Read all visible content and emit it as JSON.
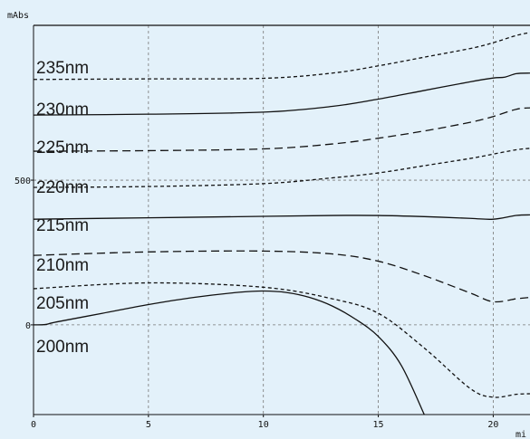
{
  "chart_data": {
    "type": "line",
    "ylabel": "mAbs",
    "xlabel": "mi",
    "xlim": [
      0,
      21.6
    ],
    "ylim": [
      -310,
      1035
    ],
    "x_ticks": [
      0,
      5,
      10,
      15,
      20
    ],
    "y_ticks": [
      0,
      500
    ],
    "grid": true,
    "background": "#e3f1fa",
    "series": [
      {
        "name": "235nm",
        "style": "short-dash",
        "x": [
          0,
          5,
          10,
          13,
          15,
          17,
          19,
          20,
          21,
          21.6
        ],
        "y": [
          848,
          850,
          852,
          870,
          895,
          925,
          955,
          975,
          1000,
          1010
        ]
      },
      {
        "name": "230nm",
        "style": "solid",
        "x": [
          0,
          5,
          10,
          13,
          15,
          17,
          19,
          20,
          20.5,
          21,
          21.6
        ],
        "y": [
          725,
          728,
          735,
          755,
          780,
          810,
          840,
          853,
          856,
          868,
          870
        ]
      },
      {
        "name": "225nm",
        "style": "long-dash",
        "x": [
          0,
          5,
          10,
          13,
          15,
          17,
          19,
          20,
          21,
          21.6
        ],
        "y": [
          600,
          602,
          608,
          625,
          645,
          670,
          700,
          720,
          745,
          750
        ]
      },
      {
        "name": "220nm",
        "style": "short-dash",
        "x": [
          0,
          5,
          10,
          13,
          15,
          17,
          19,
          20,
          21,
          21.6
        ],
        "y": [
          475,
          478,
          488,
          508,
          525,
          550,
          575,
          590,
          605,
          610
        ]
      },
      {
        "name": "215nm",
        "style": "solid",
        "x": [
          0,
          5,
          10,
          13,
          15,
          17,
          19,
          20,
          21,
          21.6
        ],
        "y": [
          365,
          370,
          375,
          378,
          378,
          374,
          368,
          365,
          378,
          380
        ]
      },
      {
        "name": "210nm",
        "style": "long-dash",
        "x": [
          0,
          5,
          10,
          13,
          15,
          17,
          19,
          20,
          21,
          21.6
        ],
        "y": [
          240,
          252,
          255,
          245,
          220,
          170,
          110,
          80,
          90,
          95
        ]
      },
      {
        "name": "205nm",
        "style": "short-dash",
        "x": [
          0,
          5,
          10,
          13,
          15,
          17,
          19,
          20,
          21,
          21.6
        ],
        "y": [
          125,
          145,
          130,
          90,
          40,
          -80,
          -220,
          -250,
          -240,
          -238
        ]
      },
      {
        "name": "200nm",
        "style": "solid",
        "x": [
          0,
          0.5,
          1,
          3,
          5,
          7,
          9,
          10,
          11,
          12,
          13,
          14,
          15,
          16,
          17
        ],
        "y": [
          0,
          1,
          10,
          40,
          70,
          95,
          113,
          117,
          112,
          95,
          65,
          20,
          -40,
          -140,
          -310
        ]
      }
    ],
    "labels": [
      "235nm",
      "230nm",
      "225nm",
      "220nm",
      "215nm",
      "210nm",
      "205nm",
      "200nm"
    ]
  }
}
